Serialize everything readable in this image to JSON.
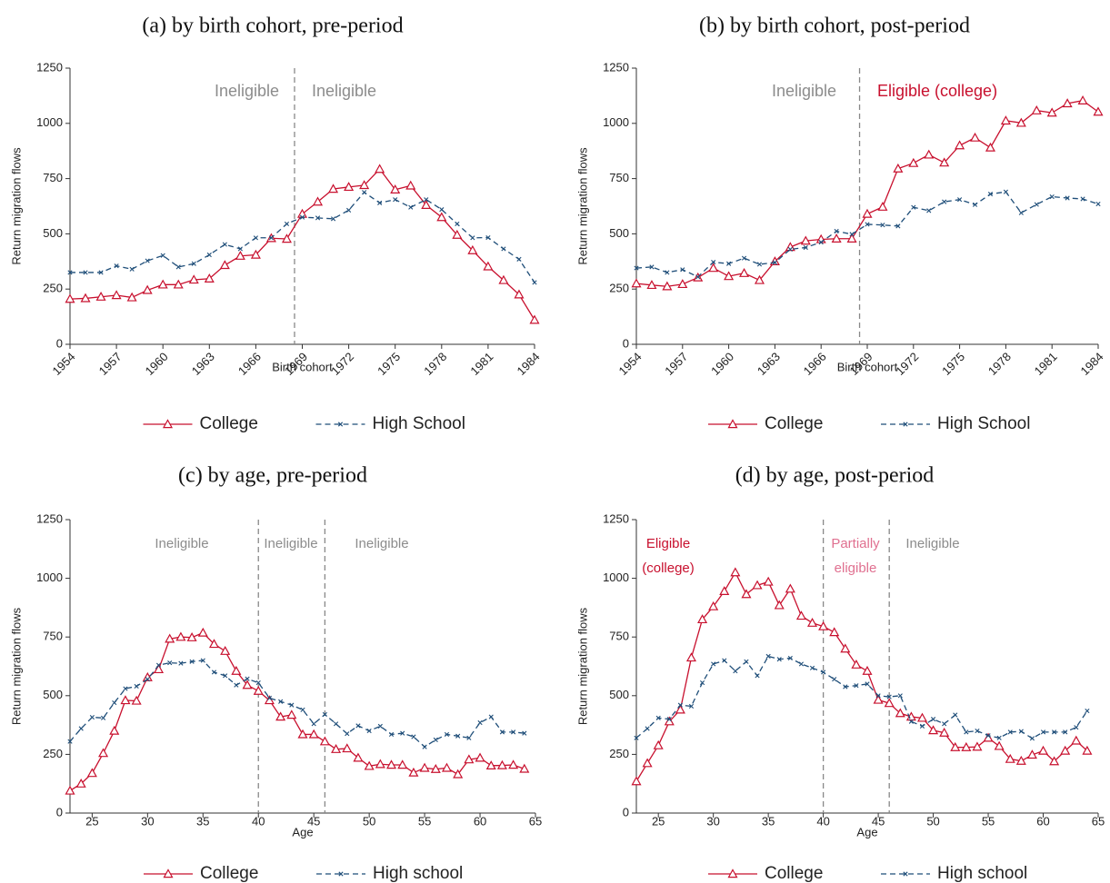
{
  "chart_data": [
    {
      "type": "line",
      "title": "(a) by birth cohort, pre-period",
      "x_label": "Birth cohort",
      "y_label": "Return migration flows",
      "x": [
        1954,
        1955,
        1956,
        1957,
        1958,
        1959,
        1960,
        1961,
        1962,
        1963,
        1964,
        1965,
        1966,
        1967,
        1968,
        1969,
        1970,
        1971,
        1972,
        1973,
        1974,
        1975,
        1976,
        1977,
        1978,
        1979,
        1980,
        1981,
        1982,
        1983,
        1984
      ],
      "series": [
        {
          "name": "College",
          "color": "#c8102e",
          "values": [
            205,
            208,
            215,
            222,
            212,
            245,
            270,
            270,
            292,
            297,
            358,
            400,
            405,
            480,
            477,
            590,
            645,
            703,
            712,
            720,
            793,
            700,
            718,
            630,
            575,
            495,
            425,
            352,
            290,
            225,
            110
          ]
        },
        {
          "name": "High School",
          "color": "#1f4e79",
          "values": [
            325,
            325,
            325,
            355,
            340,
            378,
            402,
            350,
            365,
            405,
            452,
            432,
            482,
            482,
            545,
            575,
            572,
            568,
            607,
            688,
            640,
            655,
            620,
            655,
            610,
            545,
            482,
            483,
            432,
            385,
            280
          ]
        }
      ],
      "xlim": [
        1954,
        1984
      ],
      "xticks": [
        1954,
        1957,
        1960,
        1963,
        1966,
        1969,
        1972,
        1975,
        1978,
        1981,
        1984
      ],
      "ylim": [
        0,
        1250
      ],
      "yticks": [
        0,
        250,
        500,
        750,
        1000,
        1250
      ],
      "vlines": [
        1968.5
      ],
      "annotations": [
        {
          "text": [
            "Ineligible"
          ],
          "color": "#8c8c8c"
        },
        {
          "text": [
            "Ineligible"
          ],
          "color": "#8c8c8c"
        }
      ]
    },
    {
      "type": "line",
      "title": "(b) by birth cohort, post-period",
      "x_label": "Birth cohort",
      "y_label": "Return migration flows",
      "x": [
        1954,
        1955,
        1956,
        1957,
        1958,
        1959,
        1960,
        1961,
        1962,
        1963,
        1964,
        1965,
        1966,
        1967,
        1968,
        1969,
        1970,
        1971,
        1972,
        1973,
        1974,
        1975,
        1976,
        1977,
        1978,
        1979,
        1980,
        1981,
        1982,
        1983,
        1984
      ],
      "series": [
        {
          "name": "College",
          "color": "#c8102e",
          "values": [
            275,
            268,
            262,
            272,
            302,
            345,
            308,
            322,
            290,
            375,
            440,
            468,
            475,
            478,
            478,
            590,
            622,
            795,
            820,
            858,
            822,
            900,
            935,
            890,
            1012,
            1002,
            1058,
            1048,
            1090,
            1103,
            1052
          ]
        },
        {
          "name": "High School",
          "color": "#1f4e79",
          "values": [
            345,
            350,
            325,
            338,
            305,
            372,
            365,
            390,
            362,
            370,
            430,
            438,
            462,
            512,
            498,
            543,
            540,
            535,
            620,
            605,
            645,
            655,
            632,
            680,
            690,
            595,
            633,
            668,
            662,
            658,
            635
          ]
        }
      ],
      "xlim": [
        1954,
        1984
      ],
      "xticks": [
        1954,
        1957,
        1960,
        1963,
        1966,
        1969,
        1972,
        1975,
        1978,
        1981,
        1984
      ],
      "ylim": [
        0,
        1250
      ],
      "yticks": [
        0,
        250,
        500,
        750,
        1000,
        1250
      ],
      "vlines": [
        1968.5
      ],
      "annotations": [
        {
          "text": [
            "Ineligible"
          ],
          "color": "#8c8c8c"
        },
        {
          "text": [
            "Eligible (college)"
          ],
          "color": "#c8102e"
        }
      ]
    },
    {
      "type": "line",
      "title": "(c) by age, pre-period",
      "x_label": "Age",
      "y_label": "Return migration flows",
      "x": [
        23,
        24,
        25,
        26,
        27,
        28,
        29,
        30,
        31,
        32,
        33,
        34,
        35,
        36,
        37,
        38,
        39,
        40,
        41,
        42,
        43,
        44,
        45,
        46,
        47,
        48,
        49,
        50,
        51,
        52,
        53,
        54,
        55,
        56,
        57,
        58,
        59,
        60,
        61,
        62,
        63,
        64
      ],
      "series": [
        {
          "name": "College",
          "color": "#c8102e",
          "values": [
            95,
            125,
            170,
            255,
            350,
            480,
            478,
            578,
            612,
            742,
            750,
            748,
            768,
            720,
            690,
            605,
            545,
            520,
            480,
            410,
            418,
            335,
            335,
            305,
            272,
            275,
            235,
            200,
            208,
            205,
            205,
            172,
            192,
            187,
            192,
            165,
            228,
            235,
            202,
            203,
            205,
            188
          ]
        },
        {
          "name": "High school",
          "color": "#1f4e79",
          "values": [
            305,
            360,
            408,
            405,
            470,
            530,
            540,
            570,
            630,
            640,
            638,
            645,
            650,
            600,
            585,
            545,
            572,
            555,
            490,
            475,
            460,
            440,
            380,
            420,
            380,
            338,
            372,
            350,
            370,
            335,
            340,
            325,
            282,
            312,
            335,
            328,
            320,
            385,
            410,
            345,
            345,
            340
          ]
        }
      ],
      "xlim": [
        23,
        65
      ],
      "xticks": [
        25,
        30,
        35,
        40,
        45,
        50,
        55,
        60,
        65
      ],
      "ylim": [
        0,
        1250
      ],
      "yticks": [
        0,
        250,
        500,
        750,
        1000,
        1250
      ],
      "vlines": [
        40,
        46
      ],
      "annotations": [
        {
          "text": [
            "Ineligible"
          ],
          "color": "#8c8c8c"
        },
        {
          "text": [
            "Ineligible"
          ],
          "color": "#8c8c8c"
        },
        {
          "text": [
            "Ineligible"
          ],
          "color": "#8c8c8c"
        }
      ]
    },
    {
      "type": "line",
      "title": "(d) by age, post-period",
      "x_label": "Age",
      "y_label": "Return migration flows",
      "x": [
        23,
        24,
        25,
        26,
        27,
        28,
        29,
        30,
        31,
        32,
        33,
        34,
        35,
        36,
        37,
        38,
        39,
        40,
        41,
        42,
        43,
        44,
        45,
        46,
        47,
        48,
        49,
        50,
        51,
        52,
        53,
        54,
        55,
        56,
        57,
        58,
        59,
        60,
        61,
        62,
        63,
        64
      ],
      "series": [
        {
          "name": "College",
          "color": "#c8102e",
          "values": [
            135,
            212,
            288,
            390,
            440,
            662,
            825,
            880,
            945,
            1025,
            932,
            970,
            985,
            885,
            955,
            840,
            810,
            795,
            770,
            700,
            632,
            605,
            482,
            468,
            425,
            410,
            405,
            352,
            342,
            280,
            280,
            282,
            320,
            285,
            230,
            222,
            248,
            265,
            220,
            265,
            308,
            265
          ]
        },
        {
          "name": "High school",
          "color": "#1f4e79",
          "values": [
            320,
            360,
            405,
            400,
            460,
            455,
            555,
            635,
            650,
            605,
            645,
            585,
            668,
            655,
            660,
            635,
            618,
            600,
            570,
            538,
            543,
            550,
            500,
            495,
            500,
            390,
            370,
            400,
            380,
            418,
            345,
            350,
            330,
            320,
            345,
            348,
            318,
            345,
            345,
            345,
            365,
            435
          ]
        }
      ],
      "xlim": [
        23,
        65
      ],
      "xticks": [
        25,
        30,
        35,
        40,
        45,
        50,
        55,
        60,
        65
      ],
      "ylim": [
        0,
        1250
      ],
      "yticks": [
        0,
        250,
        500,
        750,
        1000,
        1250
      ],
      "vlines": [
        40,
        46
      ],
      "annotations": [
        {
          "text": [
            "Eligible",
            "(college)"
          ],
          "color": "#c8102e"
        },
        {
          "text": [
            "Partially",
            "eligible"
          ],
          "color": "#e07090"
        },
        {
          "text": [
            "Ineligible"
          ],
          "color": "#8c8c8c"
        }
      ]
    }
  ]
}
